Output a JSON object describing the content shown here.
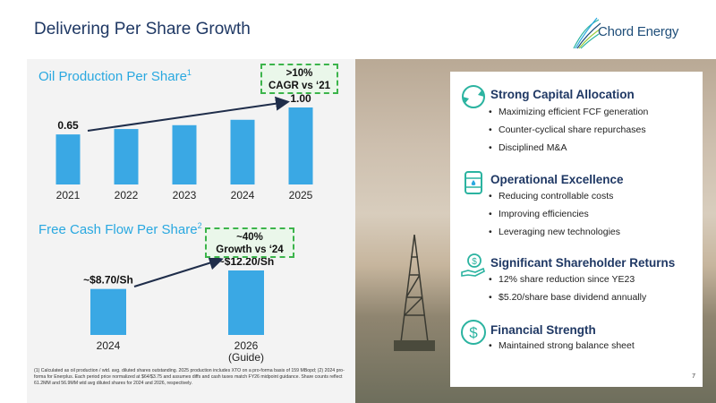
{
  "page": {
    "title": "Delivering Per Share Growth",
    "logo_text": "Chord Energy",
    "page_number": "7"
  },
  "left": {
    "oil": {
      "title": "Oil Production Per Share",
      "footnote_ref": "1",
      "callout_line1": ">10%",
      "callout_line2": "CAGR vs ‘21"
    },
    "fcf": {
      "title": "Free Cash Flow Per Share",
      "footnote_ref": "2",
      "callout_line1": "~40%",
      "callout_line2": "Growth vs ‘24"
    },
    "footnote": "(1) Calculated as oil production / wtd. avg. diluted shares outstanding. 2025 production includes XTO on a pro-forma basis of 159 MBopd; (2) 2024 pro-forma for Enerplus. Each period price normalized at $64/$3.75 and assumes diffs and cash taxes match FY26 midpoint guidance. Share counts reflect 61.2MM and 56.9MM wtd avg diluted shares for 2024 and 2026, respectively."
  },
  "chart_data": [
    {
      "type": "bar",
      "title": "Oil Production Per Share",
      "categories": [
        "2021",
        "2022",
        "2023",
        "2024",
        "2025"
      ],
      "values": [
        0.65,
        0.72,
        0.77,
        0.84,
        1.0
      ],
      "data_labels": [
        "0.65",
        "",
        "",
        "",
        "1.00"
      ],
      "ylim": [
        0,
        1.0
      ],
      "annotation": ">10% CAGR vs ‘21",
      "grid": false
    },
    {
      "type": "bar",
      "title": "Free Cash Flow Per Share",
      "categories": [
        "2024",
        "2026\n(Guide)"
      ],
      "tick_labels": [
        [
          "2024"
        ],
        [
          "2026",
          "(Guide)"
        ]
      ],
      "values": [
        8.7,
        12.2
      ],
      "data_labels": [
        "~$8.70/Sh",
        "~$12.20/Sh"
      ],
      "ylim": [
        0,
        12.2
      ],
      "annotation": "~40% Growth vs ‘24",
      "grid": false
    }
  ],
  "right": {
    "sections": [
      {
        "icon": "recycle-arrows-icon",
        "title": "Strong Capital Allocation",
        "bullets": [
          "Maximizing efficient FCF generation",
          "Counter-cyclical share repurchases",
          "Disciplined M&A"
        ]
      },
      {
        "icon": "oil-barrel-icon",
        "title": "Operational Excellence",
        "bullets": [
          "Reducing controllable costs",
          "Improving efficiencies",
          "Leveraging new technologies"
        ]
      },
      {
        "icon": "hand-dollar-icon",
        "title": "Significant Shareholder Returns",
        "bullets": [
          "12% share reduction since YE23",
          "$5.20/share base dividend annually"
        ]
      },
      {
        "icon": "dollar-circle-icon",
        "title": "Financial Strength",
        "bullets": [
          "Maintained strong balance sheet"
        ]
      }
    ]
  },
  "colors": {
    "title": "#1f3864",
    "section_title": "#29a8e0",
    "bar": "#3aa8e4",
    "callout_border": "#3cb44b",
    "icon": "#2bb3a0"
  }
}
